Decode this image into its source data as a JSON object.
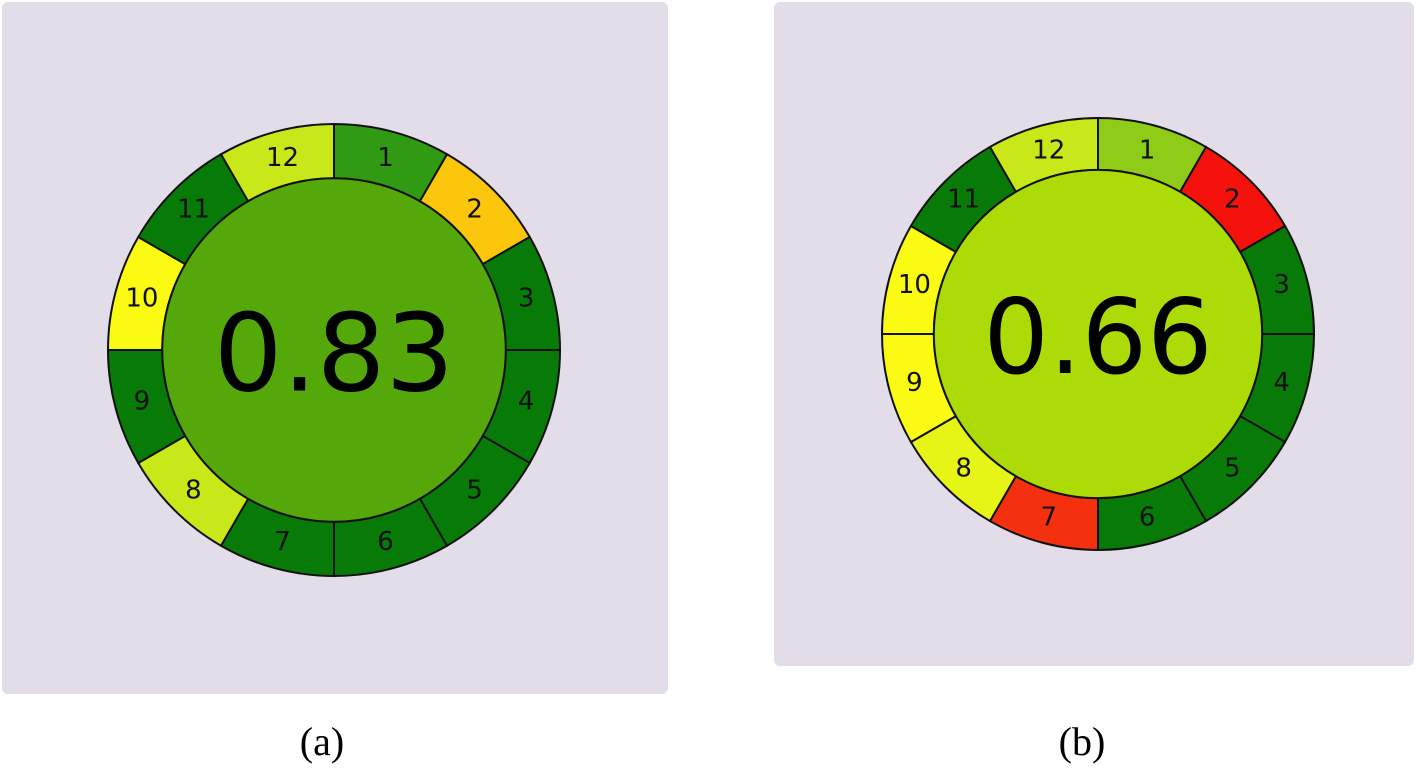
{
  "figures": [
    {
      "id": "a",
      "caption": "(a)",
      "score": "0.83",
      "center_color": "#55a80a",
      "segments": [
        {
          "label": "1",
          "color": "#2f9a12"
        },
        {
          "label": "2",
          "color": "#fcc60c"
        },
        {
          "label": "3",
          "color": "#077a07"
        },
        {
          "label": "4",
          "color": "#077a07"
        },
        {
          "label": "5",
          "color": "#077a07"
        },
        {
          "label": "6",
          "color": "#077a07"
        },
        {
          "label": "7",
          "color": "#077a07"
        },
        {
          "label": "8",
          "color": "#c8e81a"
        },
        {
          "label": "9",
          "color": "#077a07"
        },
        {
          "label": "10",
          "color": "#fafa12"
        },
        {
          "label": "11",
          "color": "#077a07"
        },
        {
          "label": "12",
          "color": "#c8e81a"
        }
      ]
    },
    {
      "id": "b",
      "caption": "(b)",
      "score": "0.66",
      "center_color": "#addb07",
      "segments": [
        {
          "label": "1",
          "color": "#8fcc18"
        },
        {
          "label": "2",
          "color": "#f5120c"
        },
        {
          "label": "3",
          "color": "#077a07"
        },
        {
          "label": "4",
          "color": "#077a07"
        },
        {
          "label": "5",
          "color": "#077a07"
        },
        {
          "label": "6",
          "color": "#077a07"
        },
        {
          "label": "7",
          "color": "#f5300e"
        },
        {
          "label": "8",
          "color": "#e6f515"
        },
        {
          "label": "9",
          "color": "#fafa12"
        },
        {
          "label": "10",
          "color": "#fafa12"
        },
        {
          "label": "11",
          "color": "#077a07"
        },
        {
          "label": "12",
          "color": "#c8e81a"
        }
      ]
    }
  ]
}
